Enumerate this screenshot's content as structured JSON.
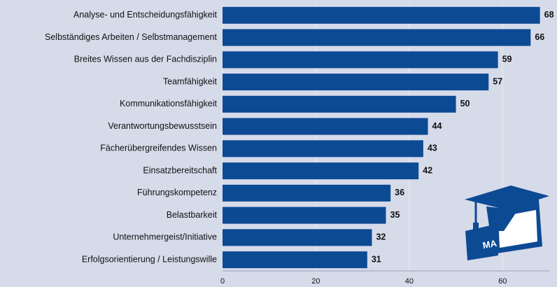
{
  "chart_data": {
    "type": "bar",
    "orientation": "horizontal",
    "categories": [
      "Analyse- und Entscheidungsfähigkeit",
      "Selbständiges Arbeiten / Selbstmanagement",
      "Breites Wissen aus der Fachdisziplin",
      "Teamfähigkeit",
      "Kommunikationsfähigkeit",
      "Verantwortungsbewusstsein",
      "Fächerübergreifendes Wissen",
      "Einsatzbereitschaft",
      "Führungskompetenz",
      "Belastbarkeit",
      "Unternehmergeist/Initiative",
      "Erfolgsorientierung / Leistungswille"
    ],
    "values": [
      68,
      66,
      59,
      57,
      50,
      44,
      43,
      42,
      36,
      35,
      32,
      31
    ],
    "color": "#0d4a94",
    "xlim": [
      0,
      70
    ],
    "xticks": [
      0,
      20,
      40,
      60
    ],
    "grid": true,
    "icon_label": "MA"
  }
}
